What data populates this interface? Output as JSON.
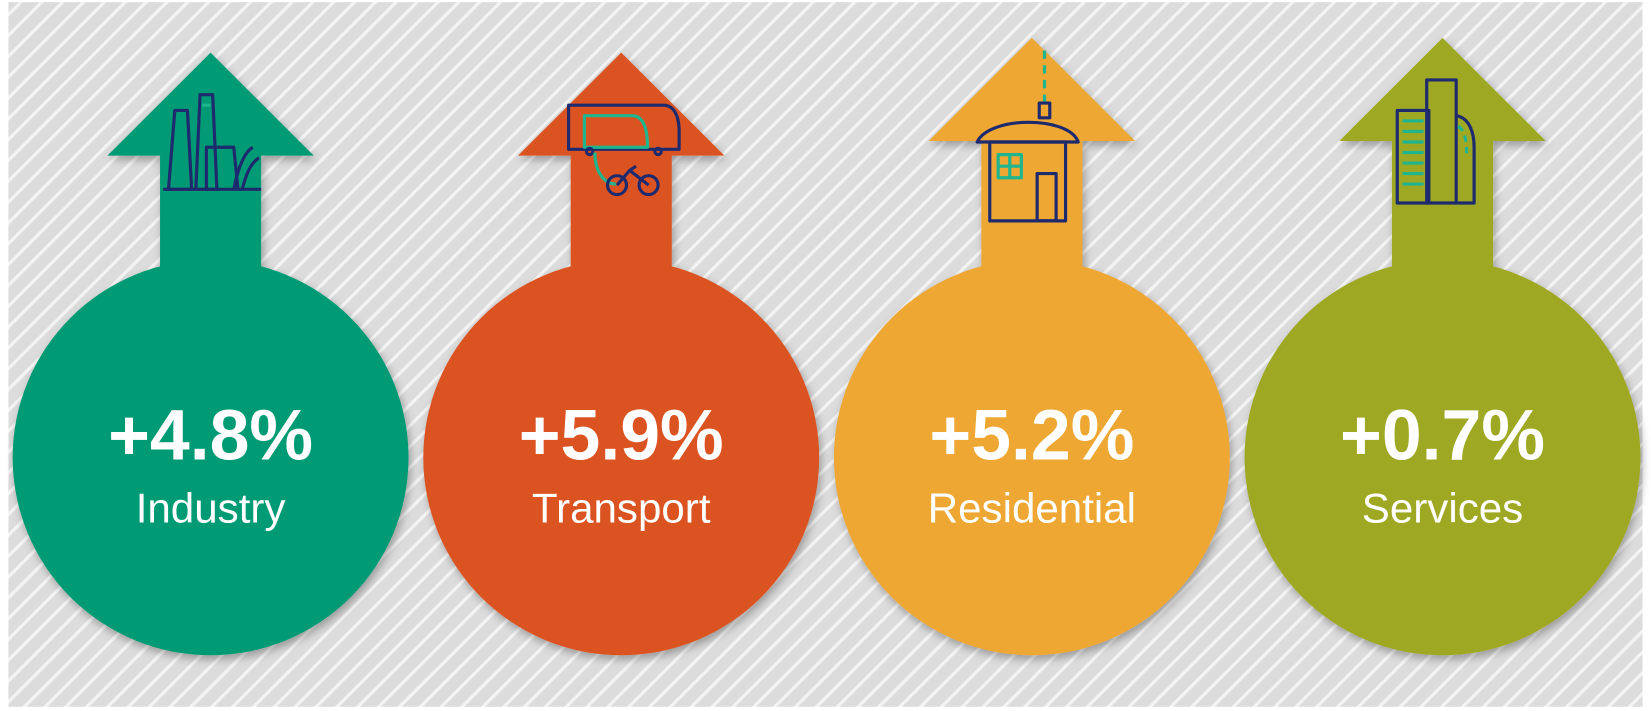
{
  "items": [
    {
      "value": "+4.8%",
      "label": "Industry",
      "color": "#009b74"
    },
    {
      "value": "+5.9%",
      "label": "Transport",
      "color": "#dc5322"
    },
    {
      "value": "+5.2%",
      "label": "Residential",
      "color": "#eda733"
    },
    {
      "value": "+0.7%",
      "label": "Services",
      "color": "#9fa823"
    }
  ]
}
